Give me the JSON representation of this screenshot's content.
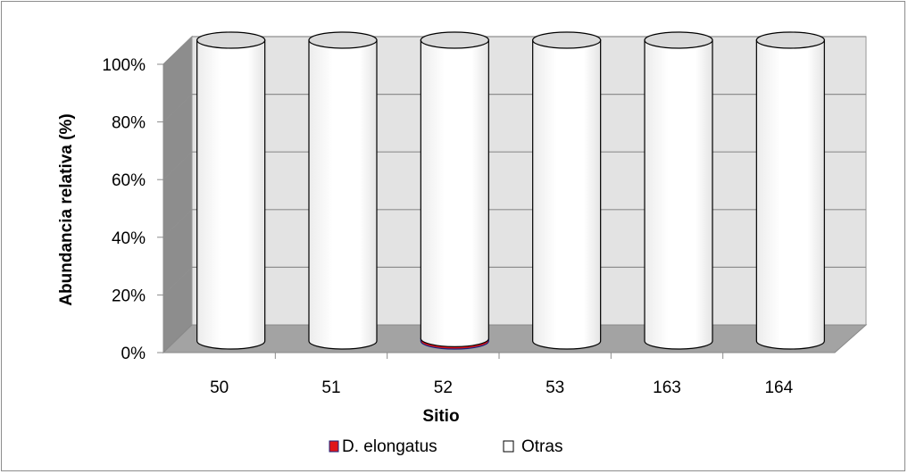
{
  "chart_data": {
    "type": "bar",
    "subtype": "stacked-percent-3d-cylinder",
    "categories": [
      "50",
      "51",
      "52",
      "53",
      "163",
      "164"
    ],
    "series": [
      {
        "name": "D. elongatus",
        "color": "#e0141b",
        "values": [
          0,
          0,
          0.8,
          0,
          0,
          0
        ]
      },
      {
        "name": "Otras",
        "color": "#ffffff",
        "values": [
          100,
          100,
          99.2,
          100,
          100,
          100
        ]
      }
    ],
    "xlabel": "Sitio",
    "ylabel": "Abundancia relativa (%)",
    "ylim": [
      0,
      100
    ],
    "yticks": [
      "0%",
      "20%",
      "40%",
      "60%",
      "80%",
      "100%"
    ],
    "grid": true,
    "legend_position": "bottom"
  }
}
